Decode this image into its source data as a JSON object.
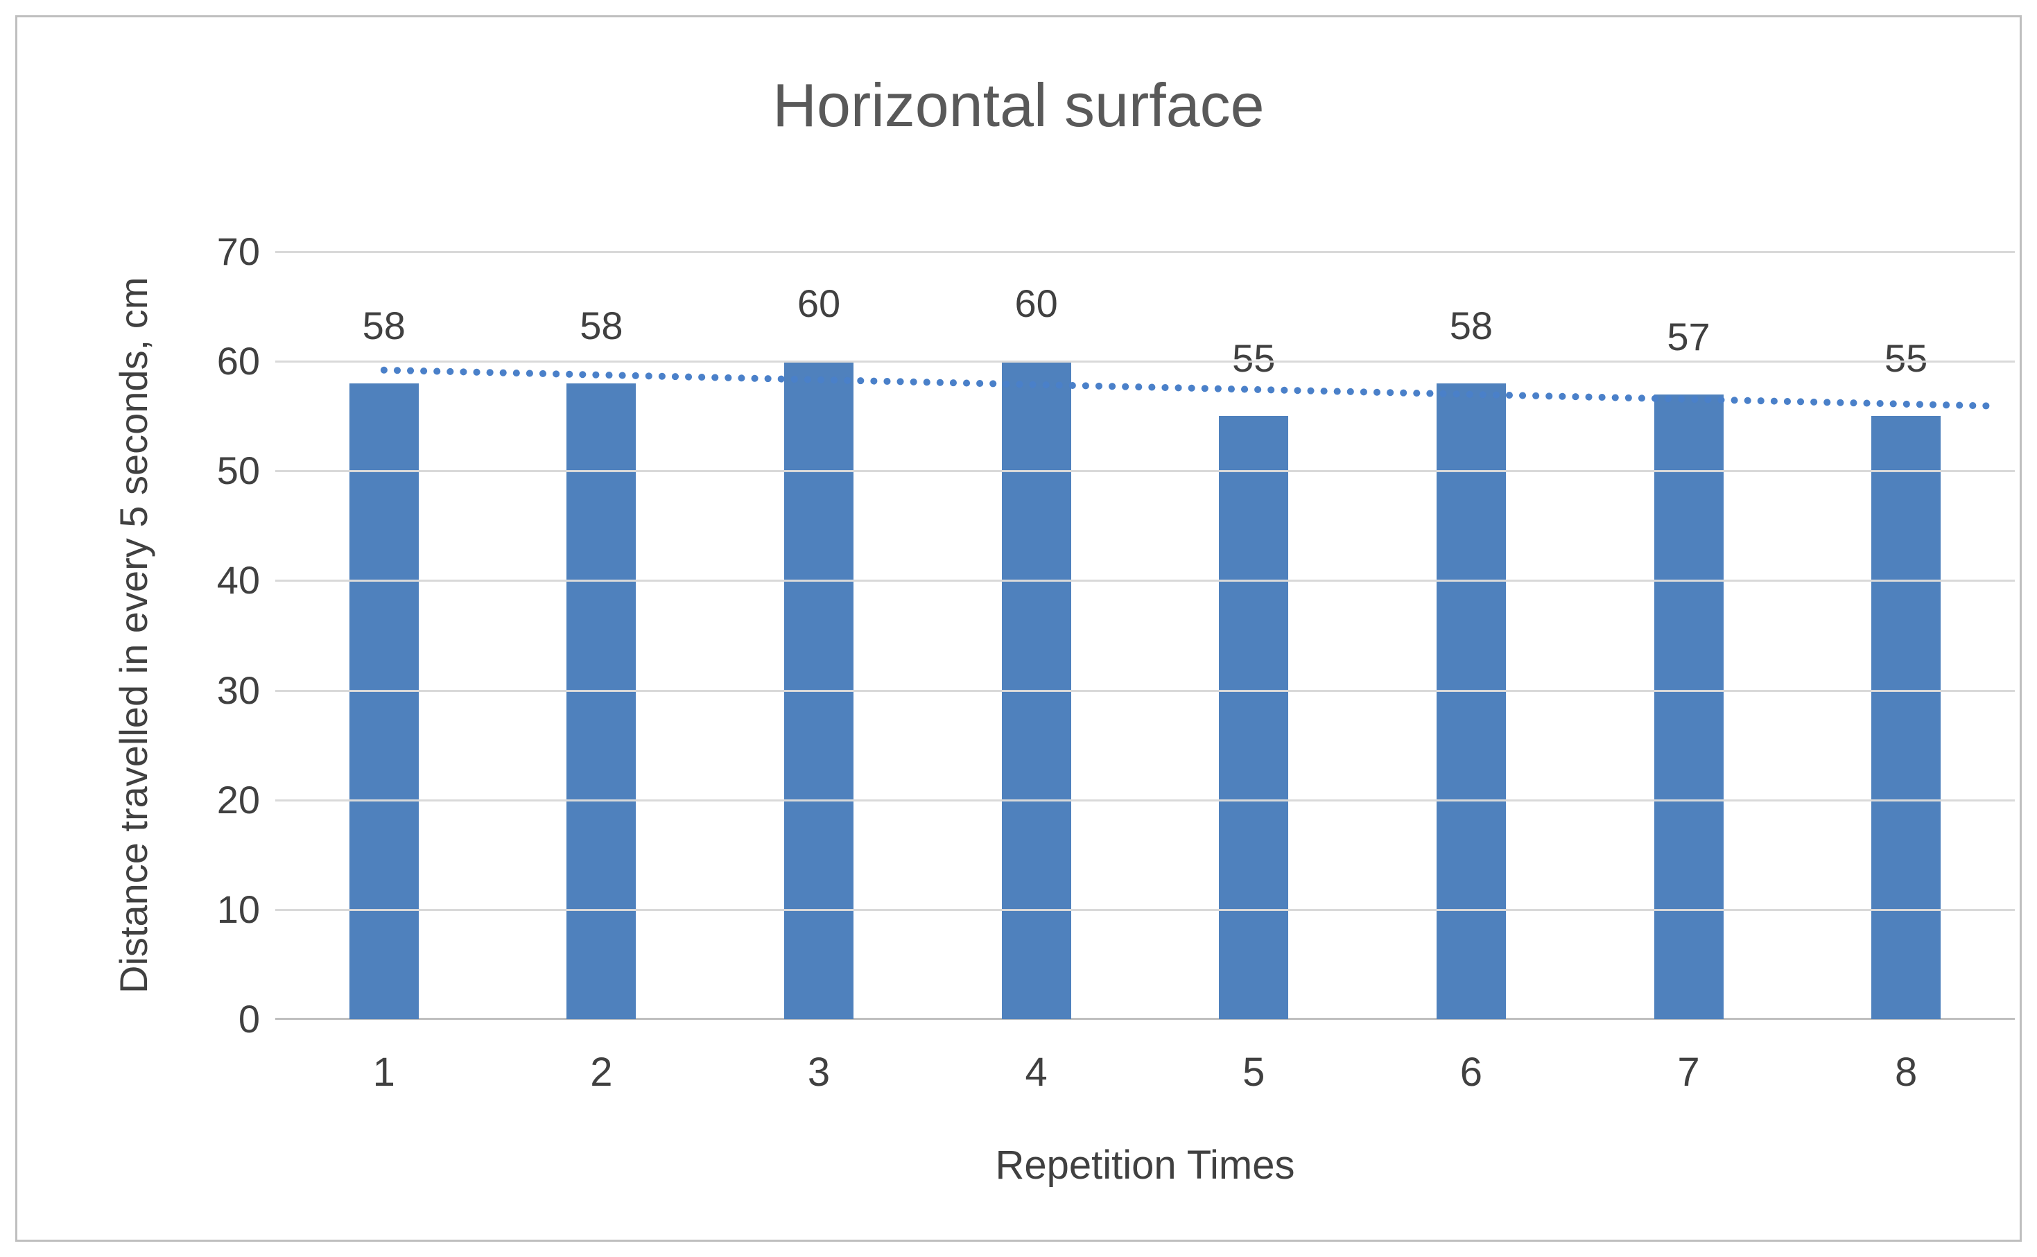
{
  "chart_data": {
    "type": "bar",
    "title": "Horizontal surface",
    "xlabel": "Repetition Times",
    "ylabel": "Distance travelled in every 5 seconds, cm",
    "categories": [
      "1",
      "2",
      "3",
      "4",
      "5",
      "6",
      "7",
      "8"
    ],
    "values": [
      58,
      58,
      60,
      60,
      55,
      58,
      57,
      55
    ],
    "data_labels": [
      "58",
      "58",
      "60",
      "60",
      "55",
      "58",
      "57",
      "55"
    ],
    "ylim": [
      0,
      70
    ],
    "yticks": [
      0,
      10,
      20,
      30,
      40,
      50,
      60,
      70
    ],
    "grid": "horizontal",
    "legend": "none",
    "trendline": {
      "type": "linear",
      "style": "dotted",
      "y_start": 59.2,
      "y_end": 56.1
    },
    "colors": {
      "bar": "#4f81bd",
      "trend": "#4a80c9",
      "gridline": "#d9d9d9",
      "axis_line": "#bfbfbf",
      "text": "#404040",
      "title": "#595959",
      "frame_border": "#bfbfbf",
      "background": "#ffffff"
    }
  }
}
